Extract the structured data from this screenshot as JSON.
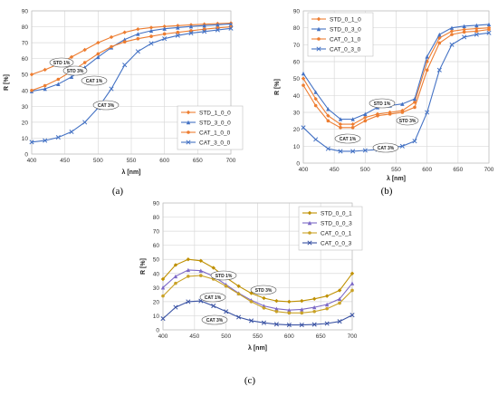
{
  "panels": [
    {
      "label": "(a)"
    },
    {
      "label": "(b)"
    },
    {
      "label": "(c)"
    }
  ],
  "colors": {
    "orange": "#ED7D31",
    "blue": "#4472C4",
    "mustard": "#BF9000",
    "purple": "#7B68C6",
    "navy": "#3A53A4",
    "gold": "#C9A227",
    "grid": "#D9D9D9"
  },
  "chart_data": [
    {
      "id": "a",
      "type": "line",
      "title": "",
      "xlabel": "λ [nm]",
      "ylabel": "R [%]",
      "xlim": [
        400,
        700
      ],
      "ylim": [
        0,
        90
      ],
      "xticks": [
        400,
        450,
        500,
        550,
        600,
        650,
        700
      ],
      "yticks": [
        0,
        10,
        20,
        30,
        40,
        50,
        60,
        70,
        80,
        90
      ],
      "grid": true,
      "legend_position": "inside-bottom-right",
      "series": [
        {
          "name": "STD_1_0_0",
          "color": "#ED7D31",
          "marker": "diamond",
          "x": [
            400,
            420,
            440,
            460,
            480,
            500,
            520,
            540,
            560,
            580,
            600,
            620,
            640,
            660,
            680,
            700
          ],
          "y": [
            50,
            53,
            56.5,
            61,
            65.5,
            70,
            73.5,
            76.5,
            78.5,
            79.5,
            80.2,
            80.7,
            81.2,
            81.6,
            82,
            82.3
          ]
        },
        {
          "name": "STD_3_0_0",
          "color": "#4472C4",
          "marker": "triangle",
          "x": [
            400,
            420,
            440,
            460,
            480,
            500,
            520,
            540,
            560,
            580,
            600,
            620,
            640,
            660,
            680,
            700
          ],
          "y": [
            39.5,
            41,
            44,
            48.5,
            54.5,
            61,
            67,
            72,
            75.5,
            77.5,
            78.8,
            79.5,
            80.2,
            80.8,
            81.3,
            81.8
          ]
        },
        {
          "name": "CAT_1_0_0",
          "color": "#ED7D31",
          "marker": "circle",
          "x": [
            400,
            420,
            440,
            460,
            480,
            500,
            520,
            540,
            560,
            580,
            600,
            620,
            640,
            660,
            680,
            700
          ],
          "y": [
            40,
            43,
            47,
            52,
            57.5,
            63,
            67.5,
            70.5,
            72.5,
            74,
            75.5,
            76.5,
            77.5,
            78.5,
            79.3,
            80
          ]
        },
        {
          "name": "CAT_3_0_0",
          "color": "#4472C4",
          "marker": "x",
          "x": [
            400,
            420,
            440,
            460,
            480,
            500,
            520,
            540,
            560,
            580,
            600,
            620,
            640,
            660,
            680,
            700
          ],
          "y": [
            7.5,
            8.5,
            10.5,
            14,
            20,
            29,
            41,
            56,
            64.5,
            69.5,
            72.5,
            74.5,
            76,
            77,
            78,
            79
          ]
        }
      ],
      "annotations": [
        {
          "text": "STD 1%"
        },
        {
          "text": "STD 3%"
        },
        {
          "text": "CAT 1%"
        },
        {
          "text": "CAT 3%"
        }
      ]
    },
    {
      "id": "b",
      "type": "line",
      "title": "",
      "xlabel": "λ [nm]",
      "ylabel": "R [%]",
      "xlim": [
        400,
        700
      ],
      "ylim": [
        0,
        90
      ],
      "xticks": [
        400,
        450,
        500,
        550,
        600,
        650,
        700
      ],
      "yticks": [
        0,
        10,
        20,
        30,
        40,
        50,
        60,
        70,
        80,
        90
      ],
      "grid": true,
      "legend_position": "inside-top-left",
      "series": [
        {
          "name": "STD_0_1_0",
          "color": "#ED7D31",
          "marker": "diamond",
          "x": [
            400,
            420,
            440,
            460,
            480,
            500,
            520,
            540,
            560,
            580,
            600,
            620,
            640,
            660,
            680,
            700
          ],
          "y": [
            50,
            38,
            28,
            23,
            23,
            27,
            29,
            30,
            31,
            36,
            60,
            74,
            78,
            79,
            79.5,
            80
          ]
        },
        {
          "name": "STD_0_3_0",
          "color": "#4472C4",
          "marker": "triangle",
          "x": [
            400,
            420,
            440,
            460,
            480,
            500,
            520,
            540,
            560,
            580,
            600,
            620,
            640,
            660,
            680,
            700
          ],
          "y": [
            53,
            42,
            32,
            26,
            26,
            29,
            33,
            34,
            35,
            38,
            63,
            76,
            80,
            81,
            81.5,
            82
          ]
        },
        {
          "name": "CAT_0_1_0",
          "color": "#ED7D31",
          "marker": "circle",
          "x": [
            400,
            420,
            440,
            460,
            480,
            500,
            520,
            540,
            560,
            580,
            600,
            620,
            640,
            660,
            680,
            700
          ],
          "y": [
            46,
            34,
            25,
            21,
            21,
            25,
            28,
            29,
            30,
            33,
            55,
            71,
            76,
            77.5,
            78,
            79
          ]
        },
        {
          "name": "CAT_0_3_0",
          "color": "#4472C4",
          "marker": "x",
          "x": [
            400,
            420,
            440,
            460,
            480,
            500,
            520,
            540,
            560,
            580,
            600,
            620,
            640,
            660,
            680,
            700
          ],
          "y": [
            21,
            14,
            8.5,
            7,
            7,
            7.5,
            8,
            9,
            10,
            13,
            30,
            55,
            70,
            74.5,
            76,
            77
          ]
        }
      ],
      "annotations": [
        {
          "text": "STD 1%"
        },
        {
          "text": "STD 3%"
        },
        {
          "text": "CAT 1%"
        },
        {
          "text": "CAT 3%"
        }
      ]
    },
    {
      "id": "c",
      "type": "line",
      "title": "",
      "xlabel": "λ [nm]",
      "ylabel": "R [%]",
      "xlim": [
        400,
        700
      ],
      "ylim": [
        0,
        90
      ],
      "xticks": [
        400,
        450,
        500,
        550,
        600,
        650,
        700
      ],
      "yticks": [
        0,
        10,
        20,
        30,
        40,
        50,
        60,
        70,
        80,
        90
      ],
      "grid": true,
      "legend_position": "inside-top-right",
      "series": [
        {
          "name": "STD_0_0_1",
          "color": "#BF9000",
          "marker": "diamond",
          "x": [
            400,
            420,
            440,
            460,
            480,
            500,
            520,
            540,
            560,
            580,
            600,
            620,
            640,
            660,
            680,
            700
          ],
          "y": [
            36,
            46,
            50,
            49,
            44,
            37,
            31,
            26,
            22.5,
            20.5,
            20,
            20.5,
            22,
            24,
            28,
            40
          ]
        },
        {
          "name": "STD_0_0_3",
          "color": "#7B68C6",
          "marker": "triangle",
          "x": [
            400,
            420,
            440,
            460,
            480,
            500,
            520,
            540,
            560,
            580,
            600,
            620,
            640,
            660,
            680,
            700
          ],
          "y": [
            30,
            38,
            42.5,
            42,
            38,
            32,
            26,
            21,
            17,
            15,
            14,
            14.5,
            16,
            18,
            22,
            33
          ]
        },
        {
          "name": "CAT_0_0_1",
          "color": "#C9A227",
          "marker": "circle",
          "x": [
            400,
            420,
            440,
            460,
            480,
            500,
            520,
            540,
            560,
            580,
            600,
            620,
            640,
            660,
            680,
            700
          ],
          "y": [
            24,
            33,
            38,
            38.5,
            36,
            31,
            25.5,
            20,
            15.5,
            13,
            12,
            12,
            13,
            15,
            19,
            28
          ]
        },
        {
          "name": "CAT_0_0_3",
          "color": "#3A53A4",
          "marker": "x",
          "x": [
            400,
            420,
            440,
            460,
            480,
            500,
            520,
            540,
            560,
            580,
            600,
            620,
            640,
            660,
            680,
            700
          ],
          "y": [
            8,
            16,
            20,
            20.5,
            17,
            13,
            9,
            6.5,
            5,
            4,
            3.5,
            3.5,
            3.8,
            4.5,
            6,
            10.5
          ]
        }
      ],
      "annotations": [
        {
          "text": "STD 1%"
        },
        {
          "text": "STD 3%"
        },
        {
          "text": "CAT 1%"
        },
        {
          "text": "CAT 3%"
        }
      ]
    }
  ]
}
